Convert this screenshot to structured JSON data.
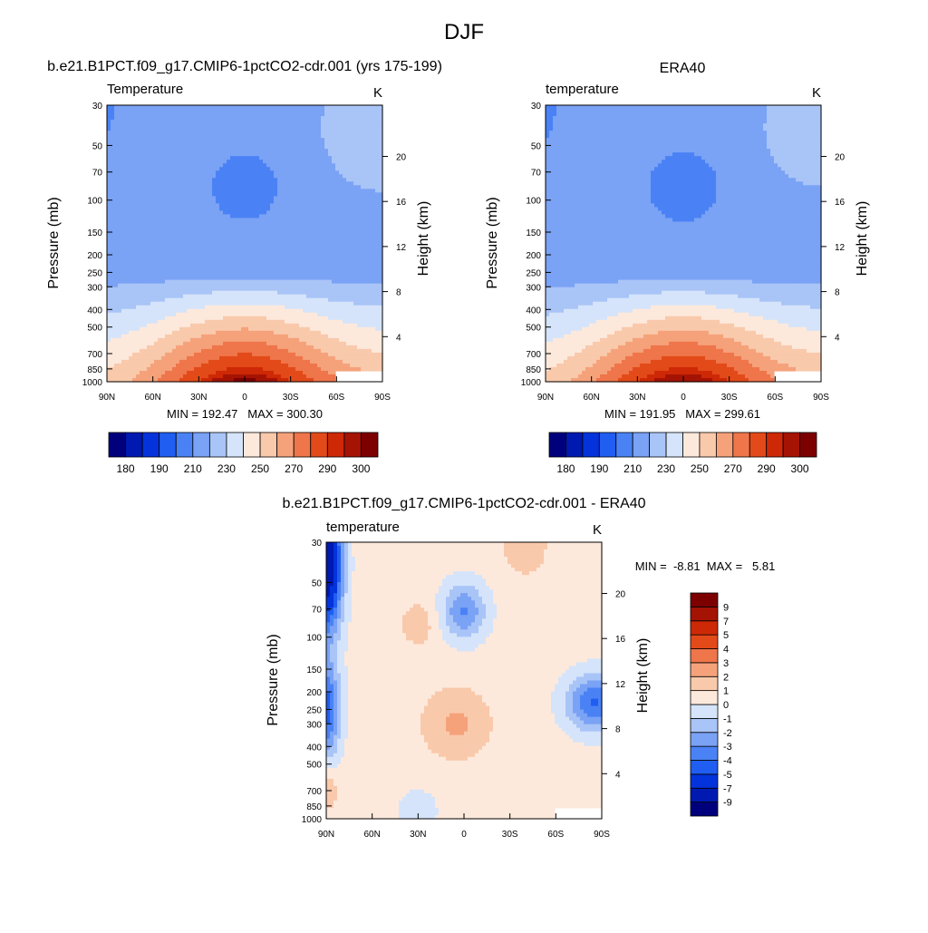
{
  "page": {
    "title": "DJF"
  },
  "chart_data": [
    {
      "type": "heatmap",
      "id": "model",
      "title": "b.e21.B1PCT.f09_g17.CMIP6-1pctCO2-cdr.001 (yrs 175-199)",
      "subtitle_left": "Temperature",
      "subtitle_right": "K",
      "xlabel": "",
      "ylabel": "Pressure (mb)",
      "ylabel_right": "Height (km)",
      "x_ticks": [
        "90N",
        "60N",
        "30N",
        "0",
        "30S",
        "60S",
        "90S"
      ],
      "x_lat": [
        90,
        60,
        30,
        0,
        -30,
        -60,
        -90
      ],
      "y_ticks": [
        30,
        50,
        70,
        100,
        150,
        200,
        250,
        300,
        400,
        500,
        700,
        850,
        1000
      ],
      "ylim": [
        1000,
        30
      ],
      "y_scale": "log",
      "height_ticks": [
        4,
        8,
        12,
        16,
        20
      ],
      "min_max_text": "MIN = 192.47   MAX = 300.30",
      "colorbar": {
        "orientation": "horizontal",
        "levels": [
          180,
          185,
          190,
          200,
          210,
          220,
          230,
          240,
          250,
          260,
          270,
          280,
          290,
          295,
          300
        ],
        "labels": [
          "180",
          "190",
          "210",
          "230",
          "250",
          "270",
          "290",
          "300"
        ],
        "colors": [
          "#00007d",
          "#0019b0",
          "#0433dc",
          "#1f5ef0",
          "#4a82f5",
          "#7aa2f5",
          "#a9c4f7",
          "#d5e4fa",
          "#fde9dc",
          "#f9c9ab",
          "#f5a27b",
          "#ef754a",
          "#e34a19",
          "#ce2906",
          "#a51305",
          "#7d0000"
        ]
      }
    },
    {
      "type": "heatmap",
      "id": "obs",
      "title": "ERA40",
      "subtitle_left": "temperature",
      "subtitle_right": "K",
      "xlabel": "",
      "ylabel": "Pressure (mb)",
      "ylabel_right": "Height (km)",
      "x_ticks": [
        "90N",
        "60N",
        "30N",
        "0",
        "30S",
        "60S",
        "90S"
      ],
      "x_lat": [
        90,
        60,
        30,
        0,
        -30,
        -60,
        -90
      ],
      "y_ticks": [
        30,
        50,
        70,
        100,
        150,
        200,
        250,
        300,
        400,
        500,
        700,
        850,
        1000
      ],
      "ylim": [
        1000,
        30
      ],
      "y_scale": "log",
      "height_ticks": [
        4,
        8,
        12,
        16,
        20
      ],
      "min_max_text": "MIN = 191.95   MAX = 299.61",
      "colorbar": {
        "orientation": "horizontal",
        "levels": [
          180,
          185,
          190,
          200,
          210,
          220,
          230,
          240,
          250,
          260,
          270,
          280,
          290,
          295,
          300
        ],
        "labels": [
          "180",
          "190",
          "210",
          "230",
          "250",
          "270",
          "290",
          "300"
        ],
        "colors": [
          "#00007d",
          "#0019b0",
          "#0433dc",
          "#1f5ef0",
          "#4a82f5",
          "#7aa2f5",
          "#a9c4f7",
          "#d5e4fa",
          "#fde9dc",
          "#f9c9ab",
          "#f5a27b",
          "#ef754a",
          "#e34a19",
          "#ce2906",
          "#a51305",
          "#7d0000"
        ]
      }
    },
    {
      "type": "heatmap",
      "id": "diff",
      "title": "b.e21.B1PCT.f09_g17.CMIP6-1pctCO2-cdr.001 - ERA40",
      "subtitle_left": "temperature",
      "subtitle_right": "K",
      "xlabel": "",
      "ylabel": "Pressure (mb)",
      "ylabel_right": "Height (km)",
      "x_ticks": [
        "90N",
        "60N",
        "30N",
        "0",
        "30S",
        "60S",
        "90S"
      ],
      "x_lat": [
        90,
        60,
        30,
        0,
        -30,
        -60,
        -90
      ],
      "y_ticks": [
        30,
        50,
        70,
        100,
        150,
        200,
        250,
        300,
        400,
        500,
        700,
        850,
        1000
      ],
      "ylim": [
        1000,
        30
      ],
      "y_scale": "log",
      "height_ticks": [
        4,
        8,
        12,
        16,
        20
      ],
      "min_max_text": "MIN =  -8.81  MAX =   5.81",
      "colorbar": {
        "orientation": "vertical",
        "levels": [
          -9,
          -7,
          -5,
          -4,
          -3,
          -2,
          -1,
          0,
          1,
          2,
          3,
          4,
          5,
          7,
          9
        ],
        "labels": [
          "-9",
          "-7",
          "-5",
          "-4",
          "-3",
          "-2",
          "-1",
          "0",
          "1",
          "2",
          "3",
          "4",
          "5",
          "7",
          "9"
        ],
        "colors": [
          "#00007d",
          "#0019b0",
          "#0433dc",
          "#1f5ef0",
          "#4a82f5",
          "#7aa2f5",
          "#a9c4f7",
          "#d5e4fa",
          "#fde9dc",
          "#f9c9ab",
          "#f5a27b",
          "#ef754a",
          "#e34a19",
          "#ce2906",
          "#a51305",
          "#7d0000"
        ]
      }
    }
  ]
}
